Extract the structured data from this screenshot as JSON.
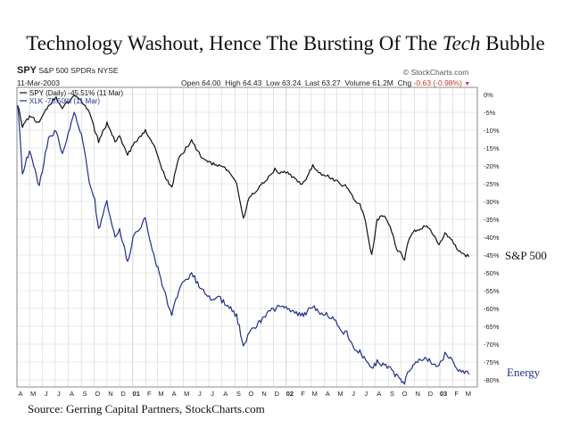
{
  "title": {
    "pre": "Technology Washout, Hence The Bursting Of The ",
    "em": "Tech",
    "post": " Bubble"
  },
  "header": {
    "symbol": "SPY",
    "name": "S&P 500 SPDRs",
    "exchange": "NYSE",
    "date": "11-Mar-2003",
    "watermark": "© StockCharts.com",
    "open_label": "Open",
    "open": "64.00",
    "high_label": "High",
    "high": "64.43",
    "low_label": "Low",
    "low": "63.24",
    "last_label": "Last",
    "last": "63.27",
    "volume_label": "Volume",
    "volume": "61.2M",
    "chg_label": "Chg",
    "chg": "-0.63 (-0.98%)"
  },
  "legend": {
    "spy": "SPY (Daily) -45.51% (11 Mar)",
    "xlk": "XLK -78.50% (11 Mar)"
  },
  "side_labels": {
    "spy": "S&P 500",
    "xlk": "Energy"
  },
  "source": "Source: Gerring Capital Partners, StockCharts.com",
  "colors": {
    "spy": "#111111",
    "xlk": "#1f2f8c",
    "grid": "#d2d2d2",
    "frame": "#888888",
    "accent": "#c0392b"
  },
  "chart_data": {
    "type": "line",
    "xlabel": "",
    "ylabel": "",
    "ylim": [
      -82,
      2
    ],
    "yticks": [
      "0%",
      "-5%",
      "-10%",
      "-15%",
      "-20%",
      "-25%",
      "-30%",
      "-35%",
      "-40%",
      "-45%",
      "-50%",
      "-55%",
      "-60%",
      "-65%",
      "-70%",
      "-75%",
      "-80%"
    ],
    "ytick_values": [
      0,
      -5,
      -10,
      -15,
      -20,
      -25,
      -30,
      -35,
      -40,
      -45,
      -50,
      -55,
      -60,
      -65,
      -70,
      -75,
      -80
    ],
    "xlim": [
      "2000-04-01",
      "2003-03-31"
    ],
    "xticks": [
      "A",
      "M",
      "J",
      "J",
      "A",
      "S",
      "O",
      "N",
      "D",
      "01",
      "F",
      "M",
      "A",
      "M",
      "J",
      "J",
      "A",
      "S",
      "O",
      "N",
      "D",
      "02",
      "F",
      "M",
      "A",
      "M",
      "J",
      "J",
      "A",
      "S",
      "O",
      "N",
      "D",
      "03",
      "F",
      "M"
    ],
    "grid": true,
    "series": [
      {
        "name": "SPY",
        "x": [
          "2000-04-03",
          "2000-04-14",
          "2000-05-01",
          "2000-05-24",
          "2000-06-15",
          "2000-07-03",
          "2000-07-18",
          "2000-08-01",
          "2000-08-15",
          "2000-09-01",
          "2000-09-20",
          "2000-10-03",
          "2000-10-12",
          "2000-11-01",
          "2000-11-20",
          "2000-12-01",
          "2000-12-20",
          "2001-01-02",
          "2001-01-31",
          "2001-02-20",
          "2001-03-12",
          "2001-03-22",
          "2001-04-04",
          "2001-04-20",
          "2001-05-21",
          "2001-06-15",
          "2001-07-02",
          "2001-07-25",
          "2001-08-15",
          "2001-09-05",
          "2001-09-21",
          "2001-10-05",
          "2001-10-20",
          "2001-11-05",
          "2001-11-20",
          "2001-12-05",
          "2001-12-20",
          "2002-01-04",
          "2002-01-25",
          "2002-02-08",
          "2002-02-20",
          "2002-03-05",
          "2002-03-19",
          "2002-04-10",
          "2002-04-25",
          "2002-05-10",
          "2002-05-25",
          "2002-06-10",
          "2002-06-25",
          "2002-07-05",
          "2002-07-23",
          "2002-08-05",
          "2002-08-22",
          "2002-09-05",
          "2002-09-20",
          "2002-10-09",
          "2002-10-20",
          "2002-11-05",
          "2002-11-27",
          "2002-12-10",
          "2002-12-30",
          "2003-01-13",
          "2003-01-30",
          "2003-02-14",
          "2003-03-11"
        ],
        "values": [
          -3,
          -9,
          -6,
          -8,
          -3,
          -1,
          -4,
          -2,
          0,
          -2,
          -5,
          -10,
          -13,
          -8,
          -13,
          -12,
          -17,
          -14,
          -10,
          -14,
          -21,
          -24,
          -26,
          -18,
          -13,
          -18,
          -19,
          -20,
          -21,
          -25,
          -35,
          -29,
          -27,
          -25,
          -23,
          -21,
          -22,
          -22,
          -24,
          -25,
          -23,
          -20,
          -22,
          -23,
          -24,
          -25,
          -26,
          -29,
          -31,
          -34,
          -45,
          -35,
          -34,
          -37,
          -43,
          -46,
          -40,
          -38,
          -37,
          -38,
          -42,
          -39,
          -41,
          -44,
          -45.5
        ]
      },
      {
        "name": "XLK",
        "x": [
          "2000-04-03",
          "2000-04-14",
          "2000-05-01",
          "2000-05-24",
          "2000-06-15",
          "2000-07-03",
          "2000-07-18",
          "2000-08-01",
          "2000-08-15",
          "2000-09-01",
          "2000-09-20",
          "2000-10-03",
          "2000-10-12",
          "2000-11-01",
          "2000-11-20",
          "2000-12-01",
          "2000-12-20",
          "2001-01-02",
          "2001-01-31",
          "2001-02-20",
          "2001-03-12",
          "2001-03-22",
          "2001-04-04",
          "2001-04-20",
          "2001-05-21",
          "2001-06-15",
          "2001-07-02",
          "2001-07-25",
          "2001-08-15",
          "2001-09-05",
          "2001-09-21",
          "2001-10-05",
          "2001-10-20",
          "2001-11-05",
          "2001-11-20",
          "2001-12-05",
          "2001-12-20",
          "2002-01-04",
          "2002-01-25",
          "2002-02-08",
          "2002-02-20",
          "2002-03-05",
          "2002-03-19",
          "2002-04-10",
          "2002-04-25",
          "2002-05-10",
          "2002-05-25",
          "2002-06-10",
          "2002-06-25",
          "2002-07-05",
          "2002-07-23",
          "2002-08-05",
          "2002-08-22",
          "2002-09-05",
          "2002-09-20",
          "2002-10-09",
          "2002-10-20",
          "2002-11-05",
          "2002-11-27",
          "2002-12-10",
          "2002-12-30",
          "2003-01-13",
          "2003-01-30",
          "2003-02-14",
          "2003-03-11"
        ],
        "values": [
          -3,
          -22,
          -16,
          -26,
          -12,
          -10,
          -17,
          -11,
          -5,
          -11,
          -24,
          -30,
          -38,
          -30,
          -40,
          -38,
          -47,
          -40,
          -35,
          -45,
          -53,
          -57,
          -62,
          -55,
          -50,
          -55,
          -57,
          -57,
          -59,
          -62,
          -70,
          -67,
          -65,
          -63,
          -61,
          -60,
          -59,
          -60,
          -61,
          -62,
          -61,
          -59,
          -61,
          -62,
          -63,
          -66,
          -67,
          -71,
          -72,
          -74,
          -77,
          -75,
          -76,
          -77,
          -79,
          -81,
          -77,
          -75,
          -74,
          -75,
          -76,
          -73,
          -74,
          -77,
          -78.5
        ]
      }
    ]
  }
}
